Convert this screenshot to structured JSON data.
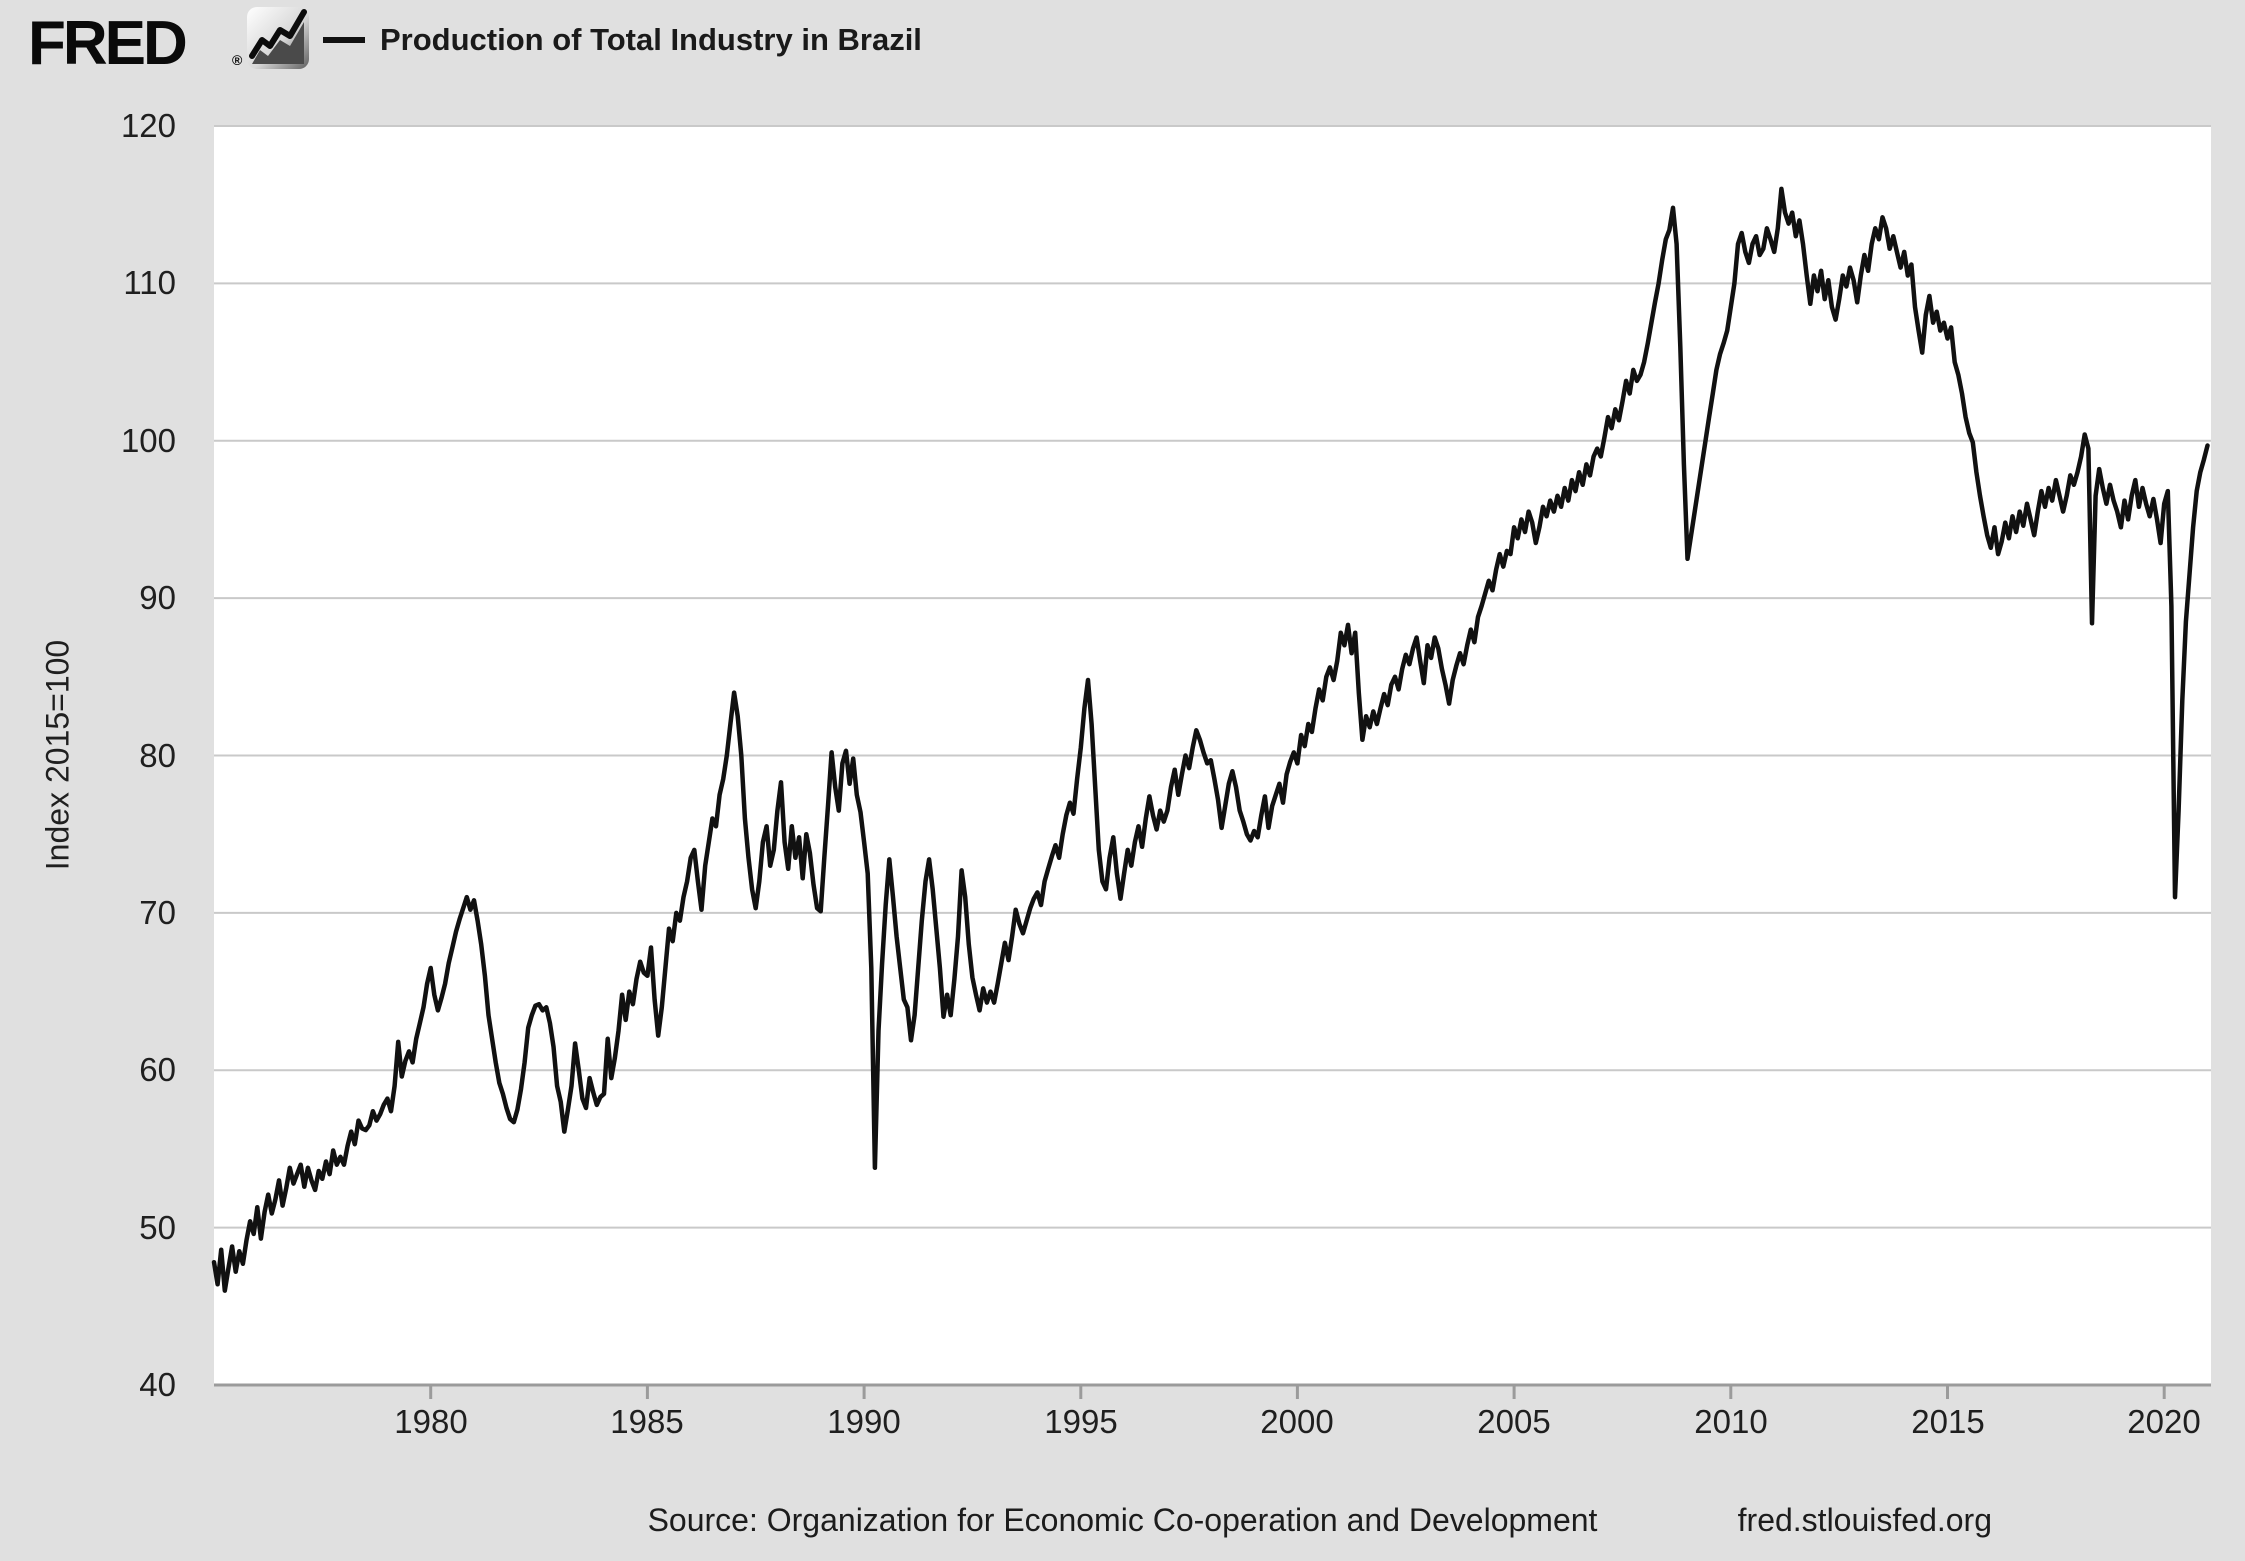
{
  "header": {
    "logo_text": "FRED",
    "registered_mark": "®",
    "title": "Production of Total Industry in Brazil"
  },
  "axes": {
    "y_title": "Index 2015=100",
    "y_ticks": [
      120,
      110,
      100,
      90,
      80,
      70,
      60,
      50,
      40
    ],
    "x_ticks": [
      1980,
      1985,
      1990,
      1995,
      2000,
      2005,
      2010,
      2015,
      2020
    ]
  },
  "footer": {
    "source": "Source: Organization for Economic Co-operation and Development",
    "link": "fred.stlouisfed.org"
  },
  "colors": {
    "background": "#e0e0e0",
    "plot_background": "#ffffff",
    "gridline": "#c9c9c9",
    "axis": "#9b9b9b",
    "line": "#111111",
    "text": "#1f1f1f"
  },
  "chart_data": {
    "type": "line",
    "title": "Production of Total Industry in Brazil",
    "ylabel": "Index 2015=100",
    "legend_position": "top",
    "grid": true,
    "frequency": "monthly",
    "x_start": 1975.0,
    "x_step": 0.0833333,
    "xlim": [
      1975.0,
      2021.08
    ],
    "ylim": [
      40,
      120
    ],
    "values": [
      47.8,
      46.4,
      48.6,
      46.0,
      47.4,
      48.8,
      47.2,
      48.5,
      47.7,
      49.2,
      50.4,
      49.6,
      51.3,
      49.3,
      51.0,
      52.1,
      50.9,
      51.8,
      53.0,
      51.4,
      52.5,
      53.8,
      52.8,
      53.4,
      54.0,
      52.6,
      53.8,
      53.0,
      52.4,
      53.6,
      53.1,
      54.2,
      53.4,
      54.9,
      54.0,
      54.5,
      54.0,
      55.2,
      56.1,
      55.3,
      56.8,
      56.3,
      56.2,
      56.5,
      57.4,
      56.8,
      57.2,
      57.8,
      58.2,
      57.4,
      59.0,
      61.8,
      59.6,
      60.6,
      61.2,
      60.5,
      62.0,
      63.0,
      64.0,
      65.5,
      66.5,
      64.8,
      63.8,
      64.6,
      65.5,
      66.8,
      67.8,
      68.8,
      69.6,
      70.3,
      71.0,
      70.2,
      70.8,
      69.5,
      68.0,
      66.0,
      63.5,
      62.0,
      60.5,
      59.2,
      58.5,
      57.6,
      56.9,
      56.7,
      57.5,
      58.8,
      60.5,
      62.7,
      63.5,
      64.1,
      64.2,
      63.8,
      64.0,
      63.0,
      61.5,
      59.0,
      58.0,
      56.1,
      57.5,
      59.0,
      61.7,
      60.0,
      58.2,
      57.6,
      59.5,
      58.6,
      57.8,
      58.3,
      58.5,
      62.0,
      59.5,
      60.8,
      62.5,
      64.8,
      63.2,
      65.0,
      64.2,
      65.8,
      66.9,
      66.2,
      66.0,
      67.8,
      64.5,
      62.2,
      64.0,
      66.5,
      69.0,
      68.2,
      70.0,
      69.5,
      71.0,
      72.0,
      73.5,
      74.0,
      72.0,
      70.2,
      73.0,
      74.5,
      76.0,
      75.5,
      77.5,
      78.5,
      80.0,
      82.0,
      84.0,
      82.5,
      80.0,
      76.0,
      73.5,
      71.5,
      70.3,
      72.0,
      74.5,
      75.5,
      73.0,
      74.0,
      76.5,
      78.3,
      74.5,
      72.8,
      75.5,
      73.5,
      74.8,
      72.2,
      75.0,
      73.8,
      71.8,
      70.3,
      70.1,
      73.5,
      76.8,
      80.2,
      78.0,
      76.5,
      79.5,
      80.3,
      78.2,
      79.8,
      77.5,
      76.4,
      74.5,
      72.5,
      66.5,
      53.8,
      62.5,
      66.8,
      70.5,
      73.4,
      71.0,
      68.5,
      66.5,
      64.5,
      64.0,
      61.9,
      63.5,
      66.5,
      69.5,
      72.0,
      73.4,
      71.5,
      69.0,
      66.5,
      63.4,
      64.8,
      63.5,
      65.8,
      68.5,
      72.7,
      71.0,
      68.0,
      65.9,
      64.8,
      63.8,
      65.2,
      64.3,
      65.0,
      64.3,
      65.5,
      66.8,
      68.1,
      67.0,
      68.5,
      70.2,
      69.3,
      68.7,
      69.5,
      70.3,
      70.9,
      71.3,
      70.5,
      72.0,
      72.8,
      73.6,
      74.3,
      73.5,
      75.0,
      76.2,
      77.0,
      76.3,
      78.5,
      80.5,
      83.0,
      84.8,
      82.0,
      78.0,
      74.0,
      72.0,
      71.5,
      73.5,
      74.8,
      72.5,
      70.9,
      72.5,
      74.0,
      73.0,
      74.5,
      75.5,
      74.2,
      76.0,
      77.4,
      76.2,
      75.3,
      76.5,
      75.8,
      76.5,
      78.0,
      79.1,
      77.5,
      78.8,
      80.0,
      79.2,
      80.5,
      81.6,
      81.0,
      80.2,
      79.5,
      79.7,
      78.5,
      77.2,
      75.4,
      76.8,
      78.2,
      79.0,
      78.0,
      76.5,
      75.8,
      75.0,
      74.6,
      75.2,
      74.8,
      76.2,
      77.4,
      75.4,
      76.8,
      77.5,
      78.2,
      77.0,
      78.8,
      79.6,
      80.2,
      79.5,
      81.3,
      80.6,
      82.0,
      81.5,
      83.0,
      84.2,
      83.5,
      85.0,
      85.6,
      84.8,
      86.0,
      87.8,
      87.0,
      88.3,
      86.5,
      87.8,
      84.0,
      81.0,
      82.5,
      81.8,
      82.8,
      82.0,
      83.0,
      83.9,
      83.2,
      84.5,
      85.0,
      84.2,
      85.5,
      86.4,
      85.8,
      86.8,
      87.5,
      86.0,
      84.6,
      87.0,
      86.2,
      87.5,
      86.8,
      85.5,
      84.5,
      83.3,
      84.8,
      85.7,
      86.5,
      85.8,
      87.0,
      88.0,
      87.2,
      88.8,
      89.5,
      90.3,
      91.1,
      90.5,
      91.8,
      92.8,
      92.0,
      93.0,
      92.8,
      94.5,
      93.8,
      95.0,
      94.2,
      95.5,
      94.8,
      93.5,
      94.5,
      95.8,
      95.2,
      96.2,
      95.5,
      96.5,
      95.8,
      97.0,
      96.2,
      97.5,
      96.8,
      98.0,
      97.2,
      98.5,
      97.8,
      99.0,
      99.5,
      99.0,
      100.2,
      101.5,
      100.8,
      102.0,
      101.3,
      102.5,
      103.8,
      103.0,
      104.5,
      103.8,
      104.2,
      105.0,
      106.2,
      107.5,
      108.8,
      110.0,
      111.5,
      112.8,
      113.4,
      114.8,
      112.5,
      106.0,
      98.5,
      92.5,
      94.0,
      95.5,
      97.0,
      98.5,
      100.0,
      101.5,
      103.0,
      104.5,
      105.5,
      106.2,
      107.0,
      108.5,
      110.0,
      112.5,
      113.2,
      112.0,
      111.3,
      112.5,
      113.0,
      111.8,
      112.2,
      113.5,
      112.8,
      112.0,
      113.5,
      116.0,
      114.5,
      113.8,
      114.5,
      113.0,
      114.0,
      112.5,
      110.5,
      108.7,
      110.5,
      109.5,
      110.8,
      109.0,
      110.2,
      108.5,
      107.7,
      109.0,
      110.5,
      109.8,
      111.0,
      110.2,
      108.8,
      110.5,
      111.8,
      110.8,
      112.5,
      113.5,
      112.8,
      114.2,
      113.5,
      112.2,
      113.0,
      112.0,
      111.0,
      112.0,
      110.5,
      111.2,
      108.5,
      107.0,
      105.6,
      108.0,
      109.2,
      107.5,
      108.2,
      107.0,
      107.5,
      106.5,
      107.2,
      105.0,
      104.2,
      103.0,
      101.5,
      100.5,
      99.9,
      98.0,
      96.5,
      95.2,
      94.0,
      93.2,
      94.5,
      92.8,
      93.6,
      94.8,
      93.8,
      95.2,
      94.2,
      95.5,
      94.6,
      96.0,
      95.0,
      94.0,
      95.5,
      96.8,
      95.8,
      97.0,
      96.2,
      97.5,
      96.5,
      95.5,
      96.5,
      97.8,
      97.2,
      98.0,
      99.0,
      100.4,
      99.5,
      88.4,
      96.5,
      98.2,
      97.0,
      96.0,
      97.2,
      96.2,
      95.5,
      94.5,
      96.2,
      95.0,
      96.5,
      97.5,
      95.8,
      97.0,
      96.0,
      95.2,
      96.3,
      95.0,
      93.5,
      96.0,
      96.8,
      89.5,
      71.0,
      76.5,
      83.5,
      88.5,
      91.5,
      94.5,
      96.8,
      98.0,
      98.8,
      99.7
    ]
  }
}
